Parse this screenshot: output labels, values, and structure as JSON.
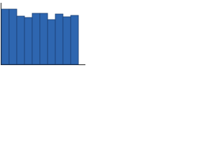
{
  "chart_data": {
    "type": "bar",
    "categories": [
      null,
      null,
      null,
      null,
      null,
      null,
      null,
      null,
      null,
      null
    ],
    "values": [
      79,
      79,
      69,
      67,
      73,
      73,
      64,
      72,
      68,
      70
    ],
    "color": "#2e66b0",
    "ylim": [
      0,
      80
    ]
  }
}
